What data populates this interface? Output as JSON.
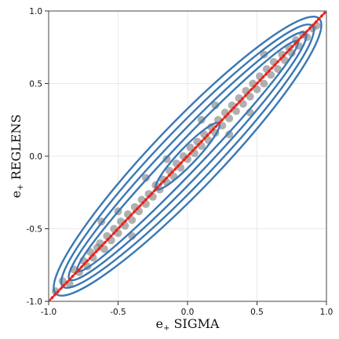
{
  "chart_data": {
    "type": "scatter",
    "title": "",
    "xlabel": {
      "base": "e",
      "subscript": "+",
      "rest": "SIGMA"
    },
    "ylabel": {
      "base": "e",
      "subscript": "+",
      "rest": "REGLENS"
    },
    "xlim": [
      -1.0,
      1.0
    ],
    "ylim": [
      -1.0,
      1.0
    ],
    "xticks": [
      -1.0,
      -0.5,
      0.0,
      0.5,
      1.0
    ],
    "yticks": [
      -1.0,
      -0.5,
      0.0,
      0.5,
      1.0
    ],
    "xtick_labels": [
      "-1.0",
      "-0.5",
      "0.0",
      "0.5",
      "1.0"
    ],
    "ytick_labels": [
      "-1.0",
      "-0.5",
      "0.0",
      "0.5",
      "1.0"
    ],
    "grid": true,
    "series": [
      {
        "kind": "scatter",
        "description_points": "dense scatter concentrated along the one-to-one diagonal",
        "color": "#707070",
        "x": [
          -0.95,
          -0.9,
          -0.85,
          -0.82,
          -0.78,
          -0.75,
          -0.72,
          -0.7,
          -0.68,
          -0.65,
          -0.63,
          -0.6,
          -0.58,
          -0.55,
          -0.53,
          -0.5,
          -0.48,
          -0.45,
          -0.43,
          -0.4,
          -0.38,
          -0.35,
          -0.33,
          -0.3,
          -0.28,
          -0.25,
          -0.23,
          -0.2,
          -0.18,
          -0.15,
          -0.13,
          -0.1,
          -0.08,
          -0.05,
          -0.03,
          0.0,
          0.02,
          0.05,
          0.07,
          0.1,
          0.12,
          0.15,
          0.17,
          0.2,
          0.22,
          0.25,
          0.27,
          0.3,
          0.32,
          0.35,
          0.37,
          0.4,
          0.42,
          0.45,
          0.47,
          0.5,
          0.52,
          0.55,
          0.57,
          0.6,
          0.62,
          0.65,
          0.68,
          0.7,
          0.73,
          0.75,
          0.78,
          0.8,
          0.83,
          0.86,
          0.9,
          0.93,
          -0.62,
          -0.4,
          -0.15,
          0.1,
          0.3,
          0.55,
          -0.3,
          0.2,
          0.45,
          -0.5
        ],
        "y": [
          -0.93,
          -0.86,
          -0.88,
          -0.78,
          -0.8,
          -0.72,
          -0.76,
          -0.66,
          -0.7,
          -0.63,
          -0.6,
          -0.64,
          -0.55,
          -0.58,
          -0.5,
          -0.53,
          -0.45,
          -0.48,
          -0.4,
          -0.44,
          -0.35,
          -0.38,
          -0.3,
          -0.33,
          -0.26,
          -0.28,
          -0.2,
          -0.23,
          -0.16,
          -0.18,
          -0.1,
          -0.14,
          -0.05,
          -0.08,
          0.0,
          -0.02,
          0.06,
          0.02,
          0.1,
          0.07,
          0.15,
          0.11,
          0.2,
          0.16,
          0.25,
          0.21,
          0.3,
          0.26,
          0.35,
          0.31,
          0.4,
          0.36,
          0.45,
          0.41,
          0.5,
          0.46,
          0.55,
          0.5,
          0.6,
          0.56,
          0.65,
          0.6,
          0.7,
          0.66,
          0.75,
          0.71,
          0.8,
          0.76,
          0.84,
          0.82,
          0.88,
          0.9,
          -0.45,
          -0.55,
          -0.02,
          0.25,
          0.15,
          0.7,
          -0.15,
          0.35,
          0.3,
          -0.38
        ]
      },
      {
        "kind": "line",
        "description_points": "one-to-one reference line",
        "style": "dotted",
        "color": "#e8221c",
        "x": [
          -1.0,
          1.0
        ],
        "y": [
          -1.0,
          1.0
        ]
      },
      {
        "kind": "contour",
        "color": "#3a78b5",
        "levels": [
          {
            "center": [
              0.0,
              0.0
            ],
            "major_half": 0.32,
            "minor_half": 0.06
          },
          {
            "center": [
              0.0,
              0.0
            ],
            "major_half": 1.12,
            "minor_half": 0.1
          },
          {
            "center": [
              0.0,
              0.0
            ],
            "major_half": 1.2,
            "minor_half": 0.145
          },
          {
            "center": [
              0.0,
              0.0
            ],
            "major_half": 1.27,
            "minor_half": 0.19
          },
          {
            "center": [
              0.0,
              0.0
            ],
            "major_half": 1.34,
            "minor_half": 0.235
          }
        ]
      }
    ]
  }
}
